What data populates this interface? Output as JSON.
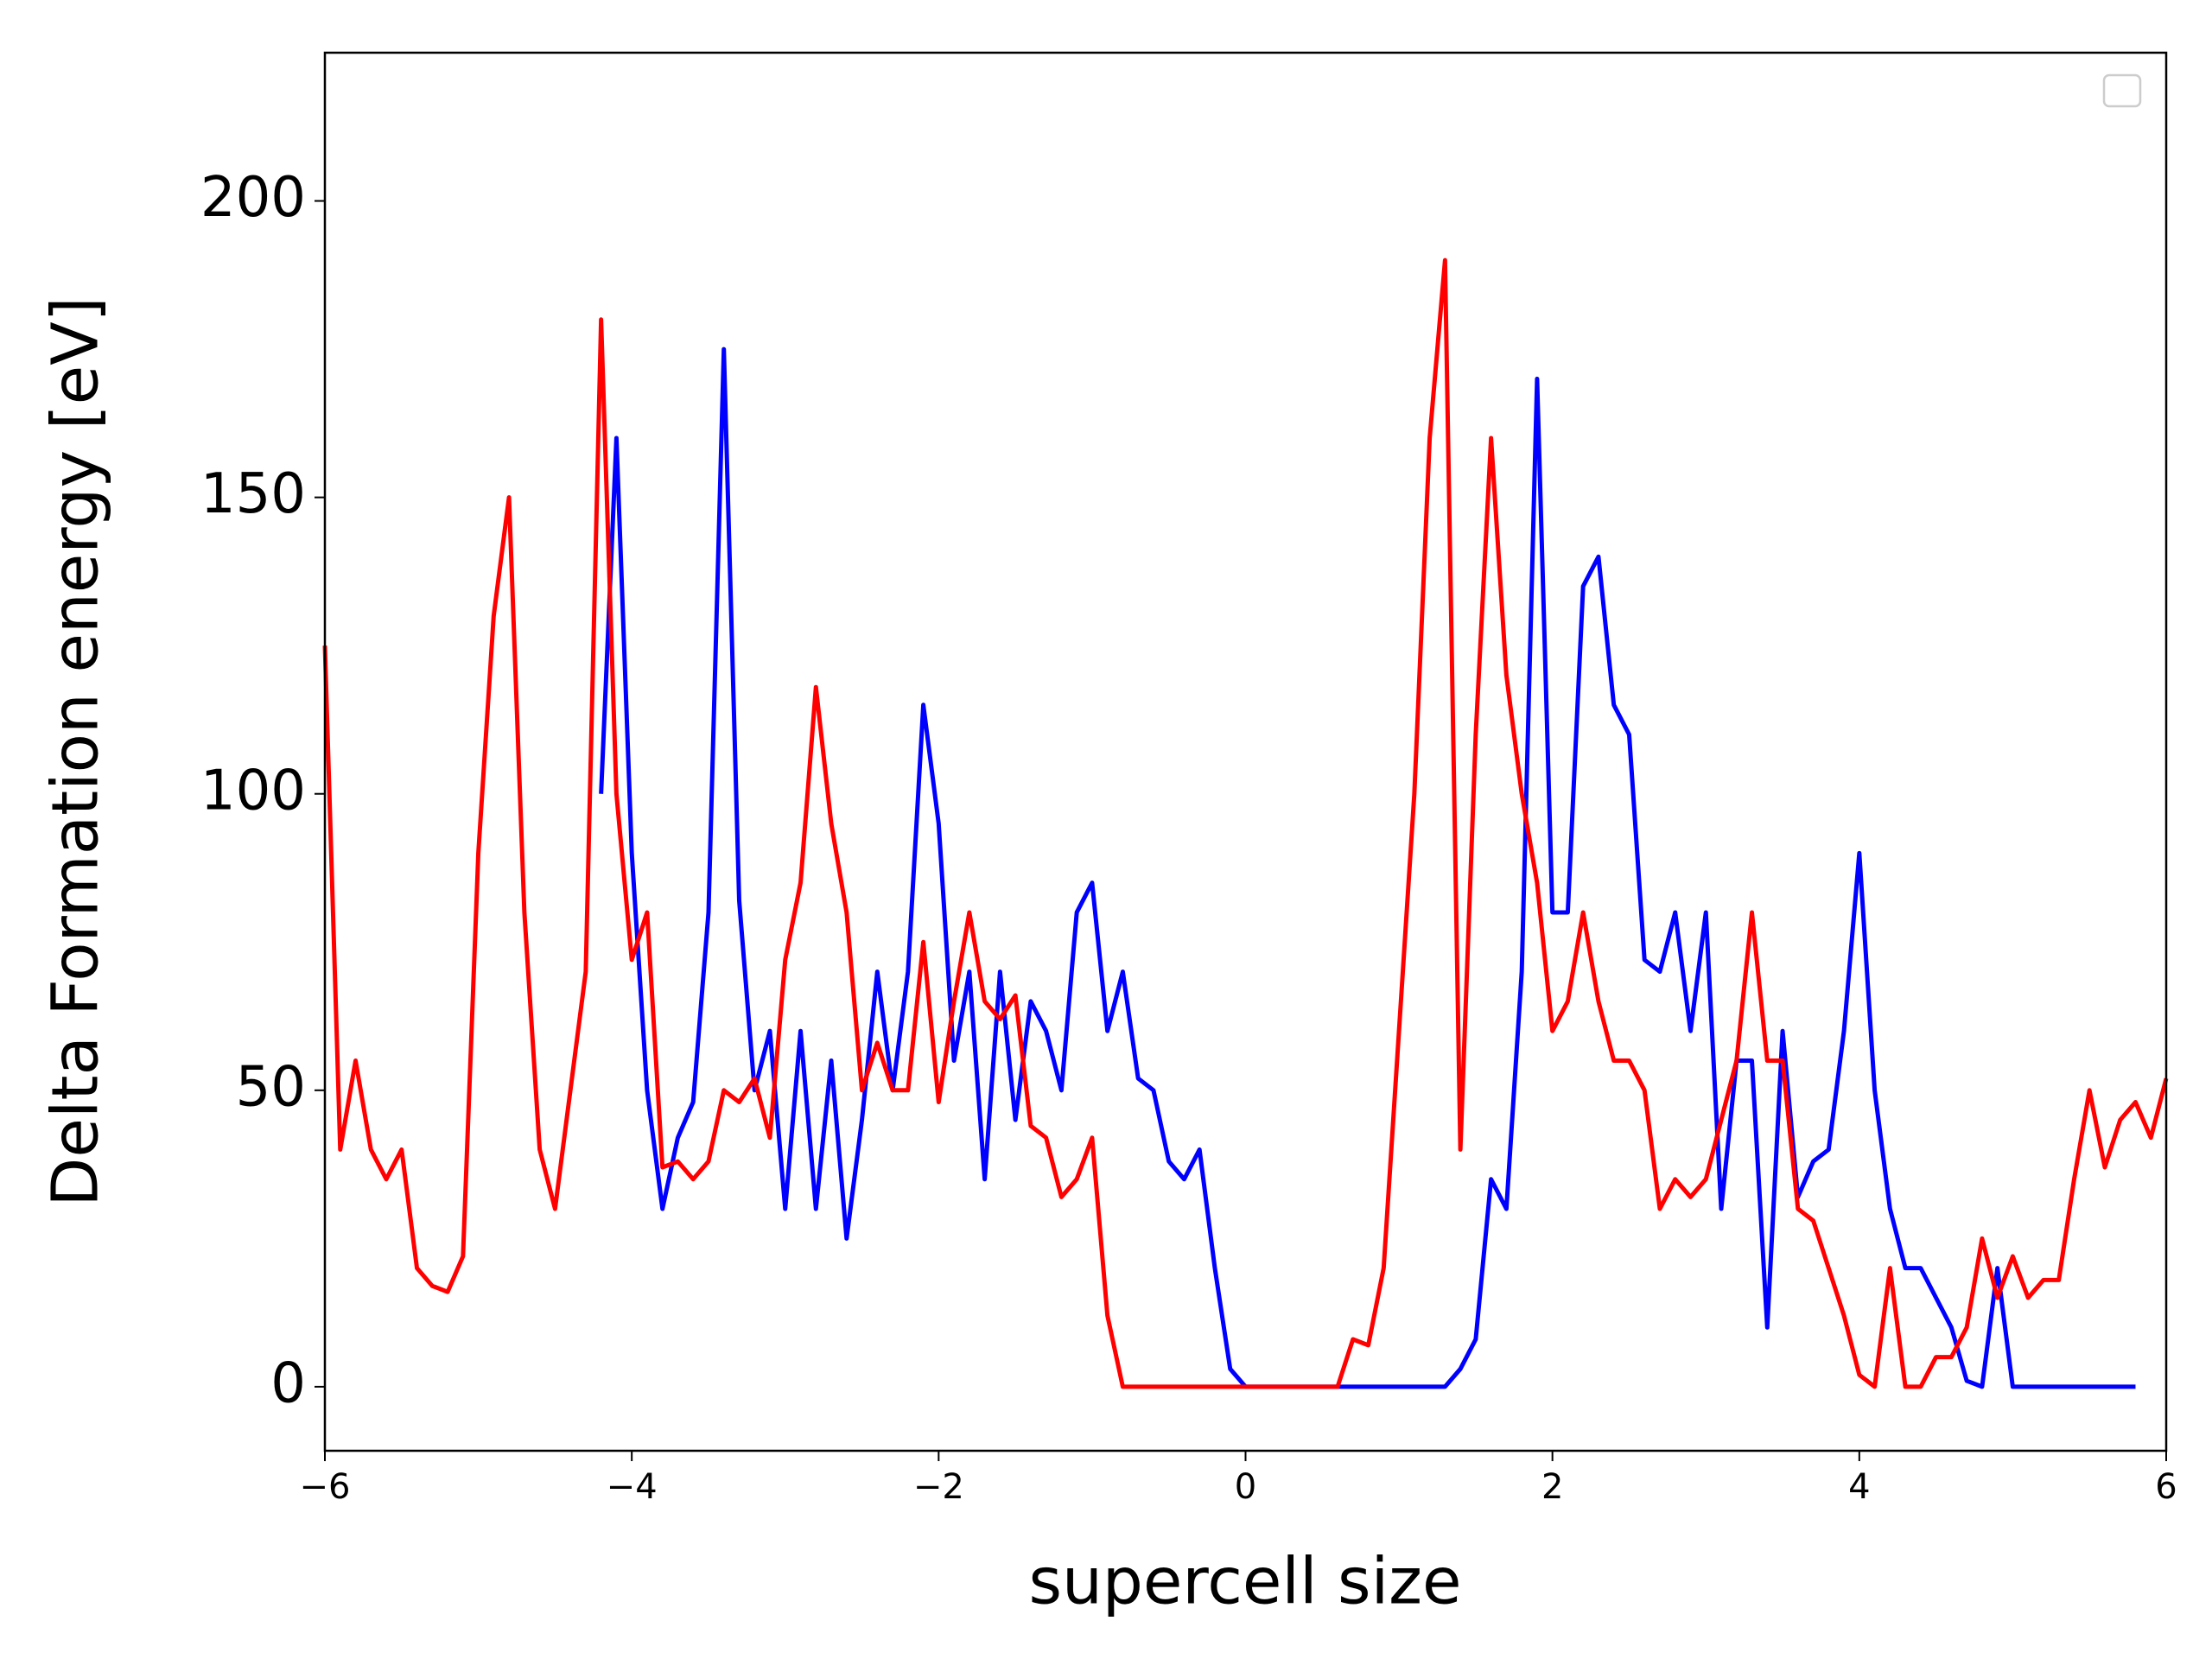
{
  "chart_data": {
    "type": "line",
    "xlabel": "supercell size",
    "ylabel": "Delta Formation energy [eV]",
    "x": [
      -6.0,
      -5.9,
      -5.8,
      -5.7,
      -5.6,
      -5.5,
      -5.4,
      -5.3,
      -5.2,
      -5.1,
      -5.0,
      -4.9,
      -4.8,
      -4.7,
      -4.6,
      -4.5,
      -4.4,
      -4.3,
      -4.2,
      -4.1,
      -4.0,
      -3.9,
      -3.8,
      -3.7,
      -3.6,
      -3.5,
      -3.4,
      -3.3,
      -3.2,
      -3.1,
      -3.0,
      -2.9,
      -2.8,
      -2.7,
      -2.6,
      -2.5,
      -2.4,
      -2.3,
      -2.2,
      -2.1,
      -2.0,
      -1.9,
      -1.8,
      -1.7,
      -1.6,
      -1.5,
      -1.4,
      -1.3,
      -1.2,
      -1.1,
      -1.0,
      -0.9,
      -0.8,
      -0.7,
      -0.6,
      -0.5,
      -0.4,
      -0.3,
      -0.2,
      -0.1,
      0.0,
      0.1,
      0.2,
      0.3,
      0.4,
      0.5,
      0.6,
      0.7,
      0.8,
      0.9,
      1.0,
      1.1,
      1.2,
      1.3,
      1.4,
      1.5,
      1.6,
      1.7,
      1.8,
      1.9,
      2.0,
      2.1,
      2.2,
      2.3,
      2.4,
      2.5,
      2.6,
      2.7,
      2.8,
      2.9,
      3.0,
      3.1,
      3.2,
      3.3,
      3.4,
      3.5,
      3.6,
      3.7,
      3.8,
      3.9,
      4.0,
      4.1,
      4.2,
      4.3,
      4.4,
      4.5,
      4.6,
      4.7,
      4.8,
      4.9,
      5.0,
      5.1,
      5.2,
      5.3,
      5.4,
      5.5,
      5.6,
      5.7,
      5.8,
      5.9,
      6.0
    ],
    "series": [
      {
        "color": "#0000ff",
        "values": [
          null,
          null,
          null,
          null,
          null,
          null,
          null,
          null,
          null,
          null,
          null,
          null,
          null,
          null,
          null,
          null,
          null,
          null,
          100,
          160,
          90,
          50,
          30,
          42,
          48,
          80,
          175,
          82,
          50,
          60,
          30,
          60,
          30,
          55,
          25,
          45,
          70,
          50,
          70,
          115,
          95,
          55,
          70,
          35,
          70,
          45,
          65,
          60,
          50,
          80,
          85,
          60,
          70,
          52,
          50,
          38,
          35,
          40,
          20,
          3,
          0,
          0,
          0,
          0,
          0,
          0,
          0,
          0,
          0,
          0,
          0,
          0,
          0,
          0,
          3,
          8,
          35,
          30,
          70,
          170,
          80,
          80,
          135,
          140,
          115,
          110,
          72,
          70,
          80,
          60,
          80,
          30,
          55,
          55,
          10,
          60,
          32,
          38,
          40,
          60,
          90,
          50,
          30,
          20,
          20,
          15,
          10,
          1,
          0,
          20,
          0,
          0,
          0,
          0,
          0,
          0,
          0,
          0,
          0,
          null,
          null
        ]
      },
      {
        "color": "#ff0000",
        "values": [
          125,
          40,
          55,
          40,
          35,
          40,
          20,
          17,
          16,
          22,
          90,
          130,
          150,
          80,
          40,
          30,
          50,
          70,
          180,
          100,
          72,
          80,
          37,
          38,
          35,
          38,
          50,
          48,
          52,
          42,
          72,
          85,
          118,
          95,
          80,
          50,
          58,
          50,
          50,
          75,
          48,
          65,
          80,
          65,
          62,
          66,
          44,
          42,
          32,
          35,
          42,
          12,
          0,
          0,
          0,
          0,
          0,
          0,
          0,
          0,
          0,
          0,
          0,
          0,
          0,
          0,
          0,
          8,
          7,
          20,
          60,
          100,
          160,
          190,
          40,
          110,
          160,
          120,
          100,
          85,
          60,
          65,
          80,
          65,
          55,
          55,
          50,
          30,
          35,
          32,
          35,
          45,
          55,
          80,
          55,
          55,
          30,
          28,
          20,
          12,
          2,
          0,
          20,
          0,
          0,
          5,
          5,
          10,
          25,
          15,
          22,
          15,
          18,
          18,
          35,
          50,
          37,
          45,
          48,
          42,
          52
        ]
      }
    ],
    "xlim": [
      -6,
      6
    ],
    "xticks": [
      {
        "value": -6,
        "label": "−6"
      },
      {
        "value": -4,
        "label": "−4"
      },
      {
        "value": -2,
        "label": "−2"
      },
      0,
      2,
      4,
      6
    ],
    "ylim": [
      -10.8,
      225
    ],
    "yticks": [
      0,
      50,
      100,
      150,
      200
    ],
    "grid": false,
    "legend": "upper right"
  }
}
